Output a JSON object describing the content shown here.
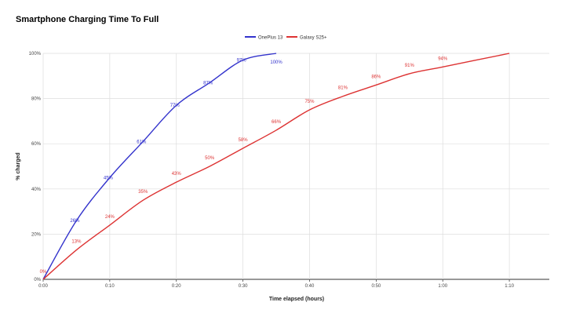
{
  "chart_data": {
    "type": "line",
    "title": "Smartphone Charging Time To Full",
    "xlabel": "Time elapsed (hours)",
    "ylabel": "% charged",
    "x_ticks": [
      "0:00",
      "0:10",
      "0:20",
      "0:30",
      "0:40",
      "0:50",
      "1:00",
      "1:10"
    ],
    "y_ticks": [
      "0%",
      "20%",
      "40%",
      "60%",
      "80%",
      "100%"
    ],
    "xlim": [
      0,
      76
    ],
    "ylim": [
      0,
      100
    ],
    "grid": true,
    "legend_position": "top-center",
    "series": [
      {
        "name": "OnePlus 13",
        "color": "#3333cc",
        "x": [
          0,
          5,
          10,
          15,
          20,
          25,
          30,
          35
        ],
        "y": [
          0,
          26,
          45,
          61,
          77,
          87,
          97,
          100
        ],
        "labels": [
          "",
          "26%",
          "45%",
          "61%",
          "77%",
          "87%",
          "97%",
          "100%"
        ]
      },
      {
        "name": "Galaxy S25+",
        "color": "#dd3333",
        "x": [
          0,
          5,
          10,
          15,
          20,
          25,
          30,
          35,
          40,
          45,
          50,
          55,
          60,
          70
        ],
        "y": [
          0,
          13,
          24,
          35,
          43,
          50,
          58,
          66,
          75,
          81,
          86,
          91,
          94,
          100
        ],
        "labels": [
          "0%",
          "13%",
          "24%",
          "35%",
          "43%",
          "50%",
          "58%",
          "66%",
          "75%",
          "81%",
          "86%",
          "91%",
          "94%",
          ""
        ]
      }
    ]
  }
}
